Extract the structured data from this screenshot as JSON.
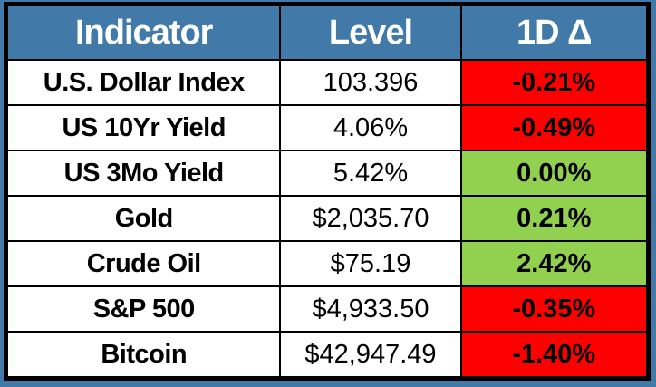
{
  "colors": {
    "frame_and_header_blue": "#4179A8",
    "negative_red": "#FF0000",
    "positive_green": "#92D050",
    "border_black": "#000000",
    "body_text": "#000000",
    "header_text": "#FFFFFF"
  },
  "chart_data": {
    "type": "table",
    "title": "",
    "columns": [
      "Indicator",
      "Level",
      "1D Δ"
    ],
    "rows": [
      {
        "indicator": "U.S. Dollar Index",
        "level": "103.396",
        "delta": "-0.21%",
        "delta_direction": "down",
        "delta_bg": "#FF0000"
      },
      {
        "indicator": "US 10Yr Yield",
        "level": "4.06%",
        "delta": "-0.49%",
        "delta_direction": "down",
        "delta_bg": "#FF0000"
      },
      {
        "indicator": "US 3Mo Yield",
        "level": "5.42%",
        "delta": "0.00%",
        "delta_direction": "flat",
        "delta_bg": "#92D050"
      },
      {
        "indicator": "Gold",
        "level": "$2,035.70",
        "delta": "0.21%",
        "delta_direction": "up",
        "delta_bg": "#92D050"
      },
      {
        "indicator": "Crude Oil",
        "level": "$75.19",
        "delta": "2.42%",
        "delta_direction": "up",
        "delta_bg": "#92D050"
      },
      {
        "indicator": "S&P 500",
        "level": "$4,933.50",
        "delta": "-0.35%",
        "delta_direction": "down",
        "delta_bg": "#FF0000"
      },
      {
        "indicator": "Bitcoin",
        "level": "$42,947.49",
        "delta": "-1.40%",
        "delta_direction": "down",
        "delta_bg": "#FF0000"
      }
    ]
  }
}
